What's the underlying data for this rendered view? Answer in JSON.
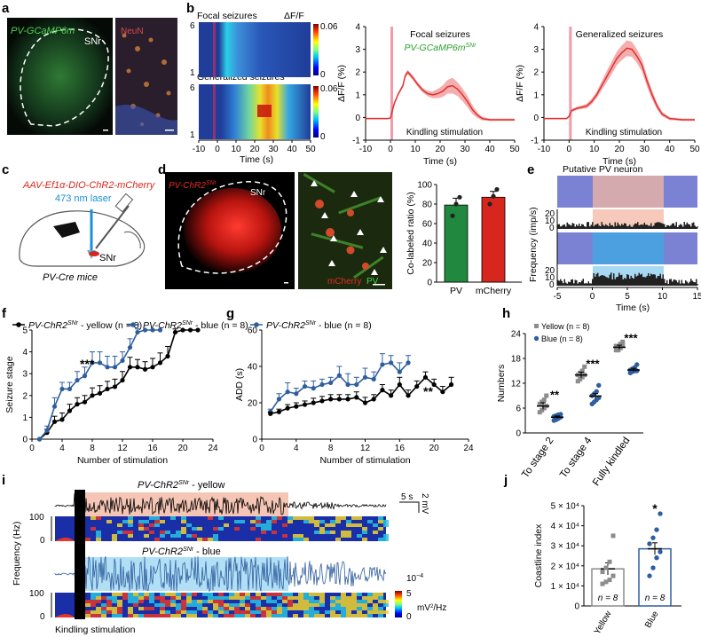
{
  "panels": {
    "a": {
      "letter": "a",
      "left_label": "PV-GCaMP6m",
      "right_label": "SNr",
      "overlay_label": "NeuN"
    },
    "b": {
      "letter": "b",
      "heat_titles": [
        "Focal seizures",
        "Generalized seizures"
      ],
      "df_label": "ΔF/F",
      "scale": {
        "max": "0.06",
        "min": "0"
      },
      "trial_ticks": {
        "top": "6",
        "bottom": "1"
      },
      "xlabel": "Time (s)",
      "xticks": [
        "-10",
        "0",
        "10",
        "20",
        "30",
        "40",
        "50"
      ]
    },
    "c": {
      "letter": "c",
      "vector": "AAV-Ef1α-DIO-ChR2-mCherry",
      "laser": "473 nm laser",
      "region": "SNr",
      "mice": "PV-Cre mice"
    },
    "d": {
      "letter": "d",
      "left_label": "PV-ChR2",
      "left_sup": "SNr",
      "region": "SNr",
      "merge_red": "mCherry",
      "merge_green": "PV"
    },
    "e": {
      "letter": "e",
      "title": "Putative PV neuron",
      "ylabel": "Frequency (imp/s)",
      "yticks": [
        "20",
        "10",
        "0"
      ],
      "xticks": [
        "-5",
        "0",
        "5",
        "10",
        "15"
      ],
      "xlabel": "Time (s)"
    },
    "f": {
      "letter": "f",
      "stars": "***"
    },
    "g": {
      "letter": "g",
      "stars": "**"
    },
    "h": {
      "letter": "h"
    },
    "i": {
      "letter": "i",
      "yellow_label": "PV-ChR2",
      "blue_label": "PV-ChR2",
      "sup": "SNr",
      "yellow_suffix": " - yellow",
      "blue_suffix": " - blue",
      "scale_time": "5 s",
      "scale_v": "2 mV",
      "ylabel": "Frequency (Hz)",
      "yticks": [
        "100",
        "0"
      ],
      "kindling": "Kindling stimulation",
      "power_max": "10",
      "power_exp": "−4",
      "power_ticks": [
        "5",
        "0"
      ],
      "power_unit": "mV",
      "power_unit_sup": "2",
      "power_unit_tail": "/Hz"
    },
    "j": {
      "letter": "j"
    }
  },
  "chart_data": [
    {
      "id": "b-focal-trace",
      "type": "line",
      "title": "Focal seizures",
      "subtitle_label": "PV-GCaMP6m",
      "subtitle_sup": "SNr",
      "xlabel": "Time (s)",
      "ylabel": "ΔF/F (%)",
      "xlim": [
        -10,
        50
      ],
      "ylim": [
        -1,
        4
      ],
      "xticks": [
        "-10",
        "0",
        "10",
        "20",
        "30",
        "40",
        "50"
      ],
      "yticks": [
        "-1",
        "0",
        "1",
        "2",
        "3",
        "4"
      ],
      "annotation": "Kindling stimulation",
      "stim": [
        0,
        1
      ],
      "series": [
        {
          "name": "Focal",
          "x": [
            -10,
            -5,
            -1,
            0,
            0.8,
            1.5,
            3,
            5,
            6,
            7,
            9,
            11,
            13,
            15,
            17,
            19,
            21,
            23,
            25,
            27,
            29,
            31,
            33,
            35,
            37,
            40,
            45,
            50
          ],
          "y": [
            -0.05,
            -0.05,
            -0.05,
            -0.02,
            0.3,
            0.6,
            1.0,
            1.4,
            1.85,
            2.0,
            1.75,
            1.45,
            1.2,
            1.05,
            1.0,
            1.05,
            1.15,
            1.35,
            1.4,
            1.25,
            1.0,
            0.7,
            0.35,
            0.1,
            -0.05,
            -0.1,
            -0.1,
            -0.1
          ],
          "err": [
            0.03,
            0.03,
            0.03,
            0.03,
            0.05,
            0.05,
            0.06,
            0.08,
            0.09,
            0.1,
            0.1,
            0.1,
            0.1,
            0.12,
            0.15,
            0.2,
            0.25,
            0.3,
            0.35,
            0.3,
            0.28,
            0.25,
            0.2,
            0.12,
            0.08,
            0.05,
            0.05,
            0.05
          ]
        }
      ]
    },
    {
      "id": "b-generalized-trace",
      "type": "line",
      "title": "Generalized seizures",
      "xlabel": "Time (s)",
      "ylabel": "ΔF/F (%)",
      "xlim": [
        -10,
        50
      ],
      "ylim": [
        -1,
        4
      ],
      "xticks": [
        "-10",
        "0",
        "10",
        "20",
        "30",
        "40",
        "50"
      ],
      "yticks": [
        "-1",
        "0",
        "1",
        "2",
        "3",
        "4"
      ],
      "annotation": "Kindling stimulation",
      "stim": [
        0,
        1
      ],
      "series": [
        {
          "name": "Generalized",
          "x": [
            -10,
            -5,
            -1,
            0,
            1,
            3,
            5,
            7,
            9,
            11,
            13,
            15,
            17,
            19,
            21,
            23,
            25,
            27,
            29,
            31,
            33,
            35,
            37,
            40,
            45,
            50
          ],
          "y": [
            -0.05,
            -0.05,
            -0.05,
            0.05,
            0.3,
            0.4,
            0.45,
            0.5,
            0.7,
            1.0,
            1.4,
            1.8,
            2.2,
            2.6,
            2.85,
            3.05,
            3.0,
            2.7,
            2.3,
            1.6,
            1.0,
            0.5,
            0.15,
            -0.05,
            -0.1,
            -0.1
          ],
          "err": [
            0.03,
            0.03,
            0.03,
            0.05,
            0.06,
            0.07,
            0.08,
            0.1,
            0.12,
            0.15,
            0.2,
            0.25,
            0.28,
            0.3,
            0.32,
            0.35,
            0.33,
            0.3,
            0.28,
            0.25,
            0.2,
            0.15,
            0.1,
            0.06,
            0.05,
            0.05
          ]
        }
      ]
    },
    {
      "id": "d-bars",
      "type": "bar",
      "ylabel": "Co-labeled ratio (%)",
      "ylim": [
        0,
        100
      ],
      "yticks": [
        "0",
        "20",
        "40",
        "60",
        "80",
        "100"
      ],
      "categories": [
        "PV",
        "mCherry"
      ],
      "values": [
        79,
        87
      ],
      "errors": [
        7,
        6
      ],
      "colors": [
        "#21883f",
        "#d7261e"
      ],
      "points": [
        [
          68,
          80,
          87
        ],
        [
          80,
          88,
          95
        ]
      ]
    },
    {
      "id": "f-seizure-stage",
      "type": "line",
      "xlabel": "Number of stimulation",
      "ylabel": "Seizure stage",
      "xlim": [
        0,
        24
      ],
      "ylim": [
        0,
        5
      ],
      "xticks": [
        "0",
        "4",
        "8",
        "12",
        "16",
        "20",
        "24"
      ],
      "yticks": [
        "0",
        "1",
        "2",
        "3",
        "4",
        "5"
      ],
      "series": [
        {
          "name": "PV-ChR2",
          "sup": "SNr",
          "suffix": " - yellow (n = 8)",
          "color": "#000000",
          "x": [
            1,
            2,
            3,
            4,
            5,
            6,
            7,
            8,
            9,
            10,
            11,
            12,
            13,
            14,
            15,
            16,
            17,
            18,
            19,
            20,
            21,
            22
          ],
          "y": [
            0,
            0.3,
            0.8,
            0.9,
            1.3,
            1.6,
            1.7,
            2.0,
            2.1,
            2.3,
            2.4,
            2.7,
            3.3,
            3.3,
            3.2,
            3.3,
            3.5,
            3.8,
            4.9,
            5,
            5,
            5
          ],
          "err": [
            0,
            0.15,
            0.25,
            0.3,
            0.3,
            0.3,
            0.3,
            0.35,
            0.35,
            0.35,
            0.35,
            0.4,
            0.45,
            0.35,
            0.35,
            0.4,
            0.45,
            0.45,
            0.15,
            0,
            0,
            0
          ]
        },
        {
          "name": "PV-ChR2",
          "sup": "SNr",
          "suffix": " - blue (n = 8)",
          "color": "#2f5e9e",
          "x": [
            1,
            2,
            3,
            4,
            5,
            6,
            7,
            8,
            9,
            10,
            11,
            12,
            13,
            14,
            15,
            16,
            17
          ],
          "y": [
            0,
            0.4,
            1.5,
            2.3,
            2.3,
            2.7,
            2.9,
            3.5,
            3.5,
            3.3,
            3.3,
            3.6,
            4.2,
            4.9,
            5,
            5,
            5
          ],
          "err": [
            0,
            0.2,
            0.4,
            0.3,
            0.3,
            0.4,
            0.4,
            0.5,
            0.5,
            0.5,
            0.5,
            0.4,
            0.4,
            0.15,
            0,
            0,
            0
          ]
        }
      ]
    },
    {
      "id": "g-add",
      "type": "line",
      "xlabel": "Number of stimulation",
      "ylabel": "ADD (s)",
      "xlim": [
        0,
        24
      ],
      "ylim": [
        0,
        60
      ],
      "xticks": [
        "0",
        "4",
        "8",
        "12",
        "16",
        "20",
        "24"
      ],
      "yticks": [
        "0",
        "20",
        "40",
        "60"
      ],
      "series": [
        {
          "name": "PV-ChR2",
          "sup": "SNr",
          "suffix": " - blue (n = 8)",
          "color": "#2f5e9e",
          "x": [
            1,
            2,
            3,
            4,
            5,
            6,
            7,
            8,
            9,
            10,
            11,
            12,
            13,
            14,
            15,
            16,
            17
          ],
          "y": [
            15,
            22,
            26,
            25,
            29,
            28,
            30,
            31,
            35,
            30,
            30,
            34,
            33,
            41,
            42,
            37,
            42
          ],
          "err": [
            1.5,
            3,
            5,
            3,
            3,
            4,
            3,
            3,
            5,
            6,
            4,
            5,
            4,
            6,
            4,
            5,
            4
          ]
        },
        {
          "name": "PV-ChR2",
          "sup": "SNr",
          "suffix": " - yellow (n = 8)",
          "color": "#000000",
          "x": [
            1,
            2,
            3,
            4,
            5,
            6,
            7,
            8,
            9,
            10,
            11,
            12,
            13,
            14,
            15,
            16,
            17,
            18,
            19,
            20,
            21,
            22
          ],
          "y": [
            14,
            15,
            17,
            18,
            19,
            20,
            21,
            22,
            22,
            22,
            23,
            20,
            22,
            27,
            24,
            30,
            24,
            29,
            34,
            30,
            26,
            30
          ],
          "err": [
            1,
            1.5,
            2,
            2,
            2,
            2.5,
            2.5,
            2.5,
            2.5,
            2.5,
            3,
            3,
            2.5,
            3,
            3,
            4,
            3,
            3,
            3,
            3,
            3,
            4
          ]
        }
      ]
    },
    {
      "id": "h-numbers",
      "type": "scatter",
      "ylabel": "Numbers",
      "ylim": [
        0,
        24
      ],
      "yticks": [
        "0",
        "6",
        "12",
        "18",
        "24"
      ],
      "categories": [
        "To stage 2",
        "To stage 4",
        "Fully kindled"
      ],
      "stars": [
        "**",
        "***",
        "***"
      ],
      "series": [
        {
          "name": "Yellow",
          "n_label": "(n = 8)",
          "color": "#8c8c8c",
          "marker": "square",
          "means": [
            6.5,
            14,
            20.7
          ],
          "errors": [
            0.8,
            0.7,
            0.5
          ],
          "points": [
            [
              5,
              5.5,
              6,
              6.5,
              7,
              7.5,
              8,
              9
            ],
            [
              12.5,
              13,
              13.5,
              14,
              14,
              14.5,
              15,
              16
            ],
            [
              20,
              20,
              20.5,
              21,
              21,
              21,
              21.5,
              22
            ]
          ]
        },
        {
          "name": "Blue",
          "n_label": "(n = 8)",
          "color": "#2f5e9e",
          "marker": "circle",
          "means": [
            3.8,
            8.9,
            15.2
          ],
          "errors": [
            0.3,
            0.6,
            0.4
          ],
          "points": [
            [
              3,
              3.2,
              3.5,
              3.8,
              4,
              4.2,
              4.4,
              4.5
            ],
            [
              7,
              7.5,
              8,
              8.5,
              9,
              9.5,
              10,
              11.5
            ],
            [
              14.5,
              14.8,
              15,
              15,
              15.2,
              15.5,
              15.8,
              16.5
            ]
          ]
        }
      ]
    },
    {
      "id": "j-coastline",
      "type": "bar",
      "ylabel": "Coastline index",
      "ylim": [
        0,
        50000
      ],
      "yticks": [
        "0",
        "1 × 10⁴",
        "2 × 10⁴",
        "3 × 10⁴",
        "4 × 10⁴",
        "5 × 10⁴"
      ],
      "categories": [
        "Yellow",
        "Blue"
      ],
      "values": [
        18500,
        28500
      ],
      "errors": [
        3000,
        3000
      ],
      "colors": [
        "#8c8c8c",
        "#2f5e9e"
      ],
      "n_labels": [
        "n = 8",
        "n = 8"
      ],
      "stars": "*",
      "points": [
        [
          11000,
          12000,
          13000,
          15000,
          17000,
          19000,
          22000,
          35000
        ],
        [
          15000,
          19000,
          24000,
          27000,
          31000,
          34000,
          38000,
          46000
        ]
      ]
    }
  ]
}
